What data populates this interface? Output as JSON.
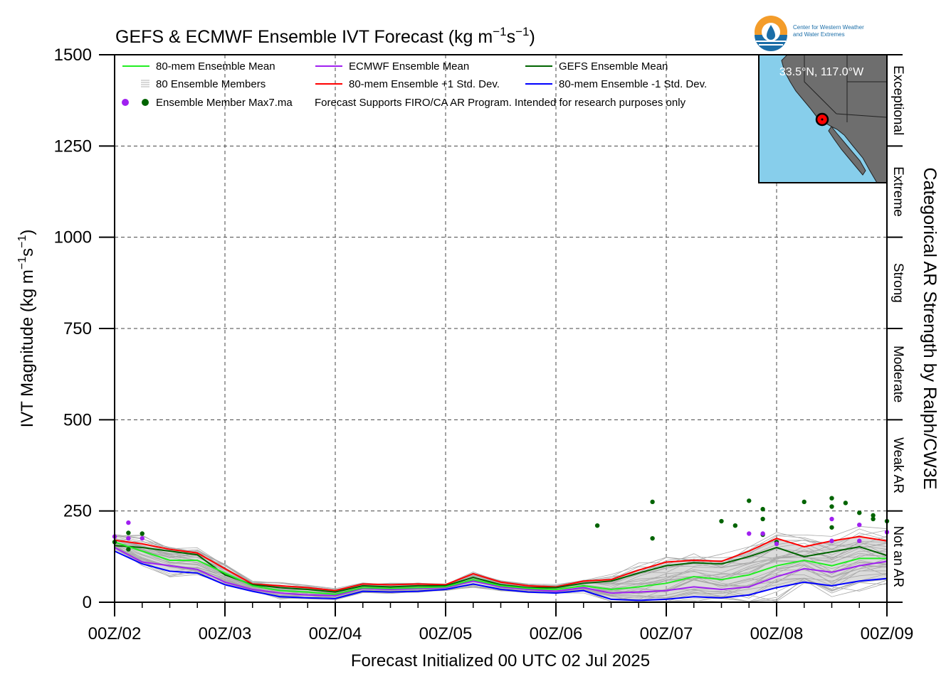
{
  "chart_data": {
    "type": "line",
    "title": "GEFS & ECMWF Ensemble IVT Forecast (kg m",
    "title_exp1": "−1",
    "title_mid": "s",
    "title_exp2": "−1",
    "title_end": ")",
    "ylabel": "IVT Magnitude (kg m",
    "ylabel_exp1": "−1",
    "ylabel_mid": "s",
    "ylabel_exp2": "−1",
    "ylabel_end": ")",
    "xlabel": "Forecast Initialized 00 UTC 02 Jul 2025",
    "right_label": "Categorical AR Strength by Ralph/CW3E",
    "ylim": [
      0,
      1500
    ],
    "xlim_hours": [
      0,
      168
    ],
    "yticks": [
      "0",
      "250",
      "500",
      "750",
      "1000",
      "1250",
      "1500"
    ],
    "xtick_labels": [
      "00Z/02",
      "00Z/03",
      "00Z/04",
      "00Z/05",
      "00Z/06",
      "00Z/07",
      "00Z/08",
      "00Z/09"
    ],
    "categories": [
      {
        "label": "Not an AR",
        "from": 0,
        "to": 250
      },
      {
        "label": "Weak AR",
        "from": 250,
        "to": 500
      },
      {
        "label": "Moderate",
        "from": 500,
        "to": 750
      },
      {
        "label": "Strong",
        "from": 750,
        "to": 1000
      },
      {
        "label": "Extreme",
        "from": 1000,
        "to": 1250
      },
      {
        "label": "Exceptional",
        "from": 1250,
        "to": 1500
      }
    ],
    "legend": {
      "mean80": "80-mem Ensemble Mean",
      "ecmwf": "ECMWF Ensemble Mean",
      "gefs": "GEFS Ensemble Mean",
      "members": "80 Ensemble Members",
      "plus": "80-mem Ensemble +1 Std. Dev.",
      "minus": "80-mem Ensemble -1 Std. Dev.",
      "max": "Ensemble Member Max7.ma",
      "note": "Forecast Supports FIRO/CA AR Program. Intended for research purposes only"
    },
    "map_label": "33.5°N, 117.0°W",
    "logo_text_1": "Center for Western Weather",
    "logo_text_2": "and Water Extremes",
    "series": [
      {
        "name": "80-mem Ensemble Mean",
        "color": "#22ee22",
        "x": [
          0,
          6,
          12,
          18,
          24,
          30,
          36,
          42,
          48,
          54,
          60,
          66,
          72,
          78,
          84,
          90,
          96,
          102,
          108,
          114,
          120,
          126,
          132,
          138,
          144,
          150,
          156,
          162,
          168
        ],
        "values": [
          165,
          140,
          115,
          115,
          80,
          45,
          32,
          28,
          22,
          40,
          38,
          40,
          42,
          62,
          45,
          38,
          35,
          45,
          35,
          42,
          52,
          70,
          62,
          75,
          100,
          115,
          100,
          120,
          120
        ]
      },
      {
        "name": "ECMWF Ensemble Mean",
        "color": "#a020f0",
        "x": [
          0,
          6,
          12,
          18,
          24,
          30,
          36,
          42,
          48,
          54,
          60,
          66,
          72,
          78,
          84,
          90,
          96,
          102,
          108,
          114,
          120,
          126,
          132,
          138,
          144,
          150,
          156,
          162,
          168
        ],
        "values": [
          150,
          110,
          100,
          90,
          55,
          35,
          25,
          20,
          18,
          38,
          35,
          38,
          40,
          58,
          42,
          35,
          30,
          40,
          25,
          28,
          32,
          42,
          35,
          42,
          70,
          92,
          82,
          100,
          112
        ]
      },
      {
        "name": "GEFS Ensemble Mean",
        "color": "#006400",
        "x": [
          0,
          6,
          12,
          18,
          24,
          30,
          36,
          42,
          48,
          54,
          60,
          66,
          72,
          78,
          84,
          90,
          96,
          102,
          108,
          114,
          120,
          126,
          132,
          138,
          144,
          150,
          156,
          162,
          168
        ],
        "values": [
          155,
          150,
          140,
          130,
          75,
          48,
          40,
          35,
          28,
          45,
          42,
          45,
          45,
          68,
          48,
          40,
          40,
          52,
          58,
          80,
          100,
          108,
          105,
          125,
          150,
          125,
          138,
          152,
          128
        ]
      },
      {
        "name": "80-mem Ensemble +1 Std. Dev.",
        "color": "#ff0000",
        "x": [
          0,
          6,
          12,
          18,
          24,
          30,
          36,
          42,
          48,
          54,
          60,
          66,
          72,
          78,
          84,
          90,
          96,
          102,
          108,
          114,
          120,
          126,
          132,
          138,
          144,
          150,
          156,
          162,
          168
        ],
        "values": [
          170,
          160,
          145,
          135,
          92,
          50,
          45,
          40,
          32,
          50,
          48,
          50,
          48,
          78,
          55,
          45,
          42,
          58,
          62,
          88,
          110,
          115,
          112,
          140,
          175,
          152,
          168,
          180,
          168
        ]
      },
      {
        "name": "80-mem Ensemble -1 Std. Dev.",
        "color": "#0000ff",
        "x": [
          0,
          6,
          12,
          18,
          24,
          30,
          36,
          42,
          48,
          54,
          60,
          66,
          72,
          78,
          84,
          90,
          96,
          102,
          108,
          114,
          120,
          126,
          132,
          138,
          144,
          150,
          156,
          162,
          168
        ],
        "values": [
          140,
          105,
          85,
          80,
          48,
          30,
          15,
          12,
          10,
          30,
          28,
          30,
          35,
          50,
          35,
          28,
          25,
          32,
          8,
          5,
          8,
          15,
          12,
          20,
          40,
          55,
          45,
          58,
          65
        ]
      }
    ],
    "max_points_gefs": [
      [
        0,
        165
      ],
      [
        3,
        190
      ],
      [
        6,
        188
      ],
      [
        3,
        145
      ],
      [
        105,
        210
      ],
      [
        117,
        275
      ],
      [
        117,
        175
      ],
      [
        132,
        222
      ],
      [
        135,
        210
      ],
      [
        138,
        278
      ],
      [
        141,
        255
      ],
      [
        141,
        228
      ],
      [
        141,
        185
      ],
      [
        144,
        165
      ],
      [
        150,
        275
      ],
      [
        156,
        285
      ],
      [
        156,
        262
      ],
      [
        156,
        205
      ],
      [
        159,
        272
      ],
      [
        162,
        245
      ],
      [
        165,
        238
      ],
      [
        165,
        228
      ],
      [
        168,
        222
      ]
    ],
    "max_points_ecmwf": [
      [
        0,
        180
      ],
      [
        3,
        218
      ],
      [
        3,
        175
      ],
      [
        6,
        175
      ],
      [
        138,
        188
      ],
      [
        141,
        188
      ],
      [
        144,
        160
      ],
      [
        156,
        228
      ],
      [
        156,
        168
      ],
      [
        162,
        212
      ],
      [
        162,
        168
      ],
      [
        168,
        192
      ]
    ]
  }
}
